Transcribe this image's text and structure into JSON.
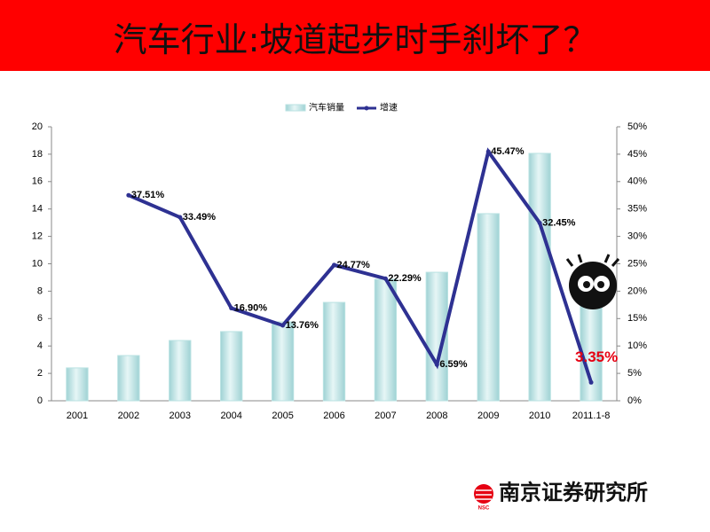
{
  "slide": {
    "title": "汽车行业:坡道起步时手刹坏了？"
  },
  "chart_data": {
    "type": "bar-line",
    "categories": [
      "2001",
      "2002",
      "2003",
      "2004",
      "2005",
      "2006",
      "2007",
      "2008",
      "2009",
      "2010",
      "2011.1-8"
    ],
    "series": [
      {
        "name": "汽车销量",
        "type": "bar",
        "color": "#b9e2e2",
        "values": [
          2.4,
          3.3,
          4.4,
          5.05,
          5.76,
          7.18,
          8.87,
          9.38,
          13.66,
          18.06,
          7
        ]
      },
      {
        "name": "增速",
        "type": "line",
        "axis": "y2",
        "color": "#2e3192",
        "values": [
          null,
          37.51,
          33.49,
          16.9,
          13.76,
          24.77,
          22.29,
          6.59,
          45.47,
          32.45,
          3.35
        ],
        "value_labels": [
          null,
          "37.51%",
          "33.49%",
          "16.90%",
          "13.76%",
          "24.77%",
          "22.29%",
          "6.59%",
          "45.47%",
          "32.45%",
          "3.35%"
        ]
      }
    ],
    "ylim": [
      0,
      20
    ],
    "yticks": [
      0,
      2,
      4,
      6,
      8,
      10,
      12,
      14,
      16,
      18,
      20
    ],
    "y2lim": [
      0,
      50
    ],
    "y2ticks": [
      {
        "value": 0,
        "label": "0%"
      },
      {
        "value": 5,
        "label": "5%"
      },
      {
        "value": 10,
        "label": "10%"
      },
      {
        "value": 15,
        "label": "15%"
      },
      {
        "value": 20,
        "label": "20%"
      },
      {
        "value": 25,
        "label": "25%"
      },
      {
        "value": 30,
        "label": "30%"
      },
      {
        "value": 35,
        "label": "35%"
      },
      {
        "value": 40,
        "label": "40%"
      },
      {
        "value": 45,
        "label": "45%"
      },
      {
        "value": 50,
        "label": "50%"
      }
    ],
    "legend": "top"
  },
  "footer": {
    "logo_text": "NSC",
    "org": "南京证券研究所"
  }
}
